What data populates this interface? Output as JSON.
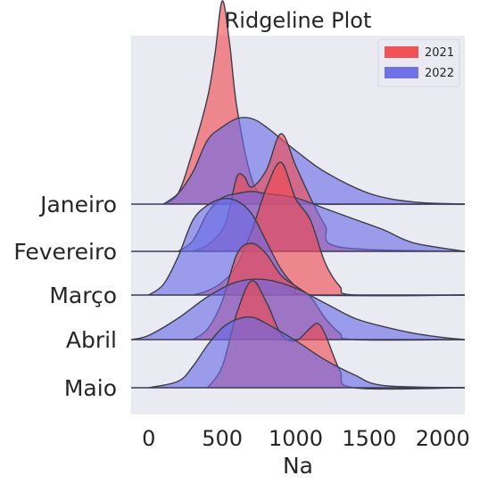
{
  "chart_data": {
    "type": "area",
    "title": "Ridgeline Plot",
    "xlabel": "Na",
    "ylabel": "",
    "xlim": [
      -120,
      2150
    ],
    "xticks": [
      0,
      500,
      1000,
      1500,
      2000
    ],
    "grid": false,
    "legend_position": "top-right",
    "series": [
      {
        "name": "2021",
        "color": "#f04a4f"
      },
      {
        "name": "2022",
        "color": "#6a6ae6"
      }
    ],
    "ridges": [
      {
        "label": "Janeiro",
        "2021": {
          "x": [
            100,
            200,
            300,
            400,
            450,
            500,
            550,
            600,
            700,
            800,
            1000,
            1200,
            1400,
            2150
          ],
          "y": [
            0,
            0.05,
            0.25,
            0.5,
            0.7,
            0.95,
            0.75,
            0.45,
            0.12,
            0.03,
            0.01,
            0,
            0,
            0
          ]
        },
        "2022": {
          "x": [
            100,
            200,
            300,
            400,
            500,
            600,
            700,
            800,
            1000,
            1200,
            1500,
            1800,
            2150
          ],
          "y": [
            0,
            0.05,
            0.15,
            0.3,
            0.36,
            0.4,
            0.4,
            0.36,
            0.25,
            0.15,
            0.05,
            0.01,
            0
          ]
        }
      },
      {
        "label": "Fevereiro",
        "2021": {
          "x": [
            300,
            400,
            500,
            550,
            600,
            650,
            700,
            800,
            900,
            1000,
            1100,
            1200,
            1300,
            2150
          ],
          "y": [
            0,
            0.03,
            0.1,
            0.2,
            0.35,
            0.35,
            0.3,
            0.38,
            0.55,
            0.4,
            0.25,
            0.12,
            0.02,
            0
          ]
        },
        "2022": {
          "x": [
            200,
            300,
            400,
            500,
            600,
            700,
            800,
            1000,
            1200,
            1400,
            1600,
            1800,
            2150
          ],
          "y": [
            0,
            0.05,
            0.18,
            0.25,
            0.27,
            0.28,
            0.27,
            0.25,
            0.2,
            0.15,
            0.1,
            0.04,
            0
          ]
        }
      },
      {
        "label": "Março",
        "2021": {
          "x": [
            300,
            400,
            500,
            600,
            700,
            800,
            900,
            1000,
            1100,
            1200,
            1300,
            1400,
            2150
          ],
          "y": [
            0,
            0.02,
            0.06,
            0.14,
            0.3,
            0.5,
            0.62,
            0.45,
            0.35,
            0.15,
            0.04,
            0,
            0
          ]
        },
        "2022": {
          "x": [
            0,
            100,
            200,
            300,
            400,
            500,
            600,
            700,
            800,
            900,
            1000,
            1100,
            2150
          ],
          "y": [
            0,
            0.05,
            0.18,
            0.35,
            0.42,
            0.45,
            0.44,
            0.38,
            0.25,
            0.12,
            0.04,
            0,
            0
          ]
        }
      },
      {
        "label": "Abril",
        "2021": {
          "x": [
            300,
            400,
            500,
            600,
            700,
            800,
            900,
            1000,
            1100,
            1200,
            1300,
            1400,
            2150
          ],
          "y": [
            0,
            0.05,
            0.18,
            0.4,
            0.45,
            0.4,
            0.3,
            0.25,
            0.2,
            0.1,
            0.03,
            0,
            0
          ]
        },
        "2022": {
          "x": [
            -120,
            0,
            200,
            400,
            600,
            800,
            1000,
            1200,
            1400,
            1600,
            1800,
            2000,
            2150
          ],
          "y": [
            0,
            0.02,
            0.1,
            0.2,
            0.27,
            0.28,
            0.24,
            0.17,
            0.1,
            0.06,
            0.03,
            0.01,
            0
          ]
        }
      },
      {
        "label": "Maio",
        "2021": {
          "x": [
            400,
            500,
            600,
            700,
            800,
            900,
            1000,
            1100,
            1150,
            1200,
            1300,
            1400,
            2150
          ],
          "y": [
            0,
            0.1,
            0.35,
            0.5,
            0.4,
            0.25,
            0.22,
            0.28,
            0.3,
            0.25,
            0.08,
            0,
            0
          ]
        },
        "2022": {
          "x": [
            0,
            200,
            300,
            400,
            500,
            600,
            700,
            800,
            1000,
            1200,
            1400,
            1600,
            2150
          ],
          "y": [
            0,
            0.03,
            0.1,
            0.2,
            0.28,
            0.32,
            0.33,
            0.3,
            0.22,
            0.13,
            0.06,
            0.01,
            0
          ]
        }
      }
    ]
  }
}
